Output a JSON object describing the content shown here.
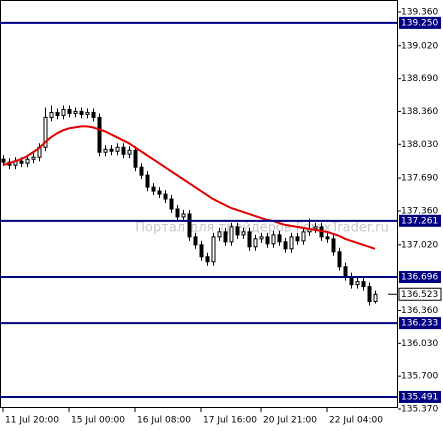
{
  "chart_data": {
    "type": "candlestick",
    "watermark": "Портал для трейдеров ForexTrader.ru",
    "categories": [
      "11 Jul 20:00",
      null,
      null,
      null,
      null,
      null,
      null,
      null,
      null,
      null,
      null,
      "15 Jul 00:00",
      null,
      null,
      null,
      null,
      null,
      null,
      null,
      null,
      null,
      null,
      "16 Jul 08:00",
      null,
      null,
      null,
      null,
      null,
      null,
      null,
      null,
      null,
      null,
      "17 Jul 16:00",
      null,
      null,
      null,
      null,
      null,
      null,
      null,
      null,
      null,
      "20 Jul 21:00",
      null,
      null,
      null,
      null,
      null,
      null,
      null,
      null,
      null,
      null,
      "22 Jul 04:00",
      null,
      null,
      null,
      null,
      null,
      null,
      null,
      null
    ],
    "open": [
      137.88,
      137.85,
      137.82,
      137.86,
      137.84,
      137.88,
      137.9,
      138.0,
      138.3,
      138.35,
      138.32,
      138.38,
      138.34,
      138.36,
      138.33,
      138.35,
      138.3,
      137.95,
      137.98,
      137.96,
      138.0,
      137.93,
      137.97,
      137.8,
      137.72,
      137.6,
      137.56,
      137.53,
      137.48,
      137.38,
      137.3,
      137.33,
      137.1,
      137.02,
      136.9,
      136.85,
      137.1,
      137.15,
      137.05,
      137.2,
      137.12,
      137.15,
      137.0,
      137.08,
      137.1,
      137.03,
      137.12,
      137.05,
      136.98,
      137.1,
      137.06,
      137.15,
      137.18,
      137.2,
      137.1,
      137.08,
      136.95,
      136.8,
      136.7,
      136.62,
      136.65,
      136.6,
      136.45
    ],
    "high": [
      137.92,
      137.89,
      137.9,
      137.9,
      137.92,
      137.94,
      138.04,
      138.4,
      138.42,
      138.39,
      138.42,
      138.42,
      138.4,
      138.4,
      138.39,
      138.39,
      138.34,
      138.02,
      138.02,
      138.04,
      138.04,
      138.01,
      138.01,
      137.84,
      137.76,
      137.64,
      137.6,
      137.57,
      137.52,
      137.42,
      137.37,
      137.37,
      137.14,
      137.06,
      136.94,
      137.14,
      137.19,
      137.19,
      137.24,
      137.24,
      137.19,
      137.19,
      137.12,
      137.14,
      137.14,
      137.16,
      137.16,
      137.09,
      137.14,
      137.14,
      137.19,
      137.28,
      137.24,
      137.24,
      137.14,
      137.12,
      136.99,
      136.84,
      136.74,
      136.69,
      136.69,
      136.64,
      136.56
    ],
    "low": [
      137.81,
      137.78,
      137.78,
      137.8,
      137.8,
      137.84,
      137.86,
      137.96,
      138.26,
      138.28,
      138.28,
      138.3,
      138.3,
      138.29,
      138.29,
      138.26,
      137.91,
      137.91,
      137.92,
      137.92,
      137.89,
      137.89,
      137.76,
      137.68,
      137.56,
      137.52,
      137.49,
      137.44,
      137.34,
      137.26,
      137.26,
      137.06,
      136.98,
      136.86,
      136.81,
      136.81,
      137.06,
      137.01,
      137.01,
      137.08,
      137.08,
      136.96,
      136.96,
      137.04,
      136.99,
      136.99,
      137.01,
      136.94,
      136.94,
      137.02,
      137.02,
      137.11,
      137.14,
      137.06,
      137.04,
      136.91,
      136.76,
      136.66,
      136.58,
      136.58,
      136.56,
      136.41,
      136.43
    ],
    "close": [
      137.85,
      137.82,
      137.86,
      137.84,
      137.88,
      137.9,
      138.0,
      138.3,
      138.35,
      138.32,
      138.38,
      138.34,
      138.36,
      138.33,
      138.35,
      138.3,
      137.95,
      137.98,
      137.96,
      138.0,
      137.93,
      137.97,
      137.8,
      137.72,
      137.6,
      137.56,
      137.53,
      137.48,
      137.38,
      137.3,
      137.33,
      137.1,
      137.02,
      136.9,
      136.85,
      137.1,
      137.15,
      137.05,
      137.2,
      137.12,
      137.15,
      137.0,
      137.08,
      137.1,
      137.03,
      137.12,
      137.05,
      136.98,
      137.1,
      137.06,
      137.15,
      137.18,
      137.2,
      137.1,
      137.08,
      136.95,
      136.8,
      136.7,
      136.62,
      136.65,
      136.6,
      136.45,
      136.523
    ],
    "ma": {
      "color": "#e00000",
      "values": [
        137.82,
        137.84,
        137.86,
        137.88,
        137.91,
        137.95,
        137.99,
        138.05,
        138.1,
        138.14,
        138.17,
        138.19,
        138.2,
        138.21,
        138.21,
        138.2,
        138.18,
        138.16,
        138.13,
        138.1,
        138.07,
        138.04,
        138.0,
        137.96,
        137.92,
        137.88,
        137.84,
        137.8,
        137.76,
        137.72,
        137.68,
        137.64,
        137.6,
        137.56,
        137.52,
        137.48,
        137.45,
        137.42,
        137.39,
        137.37,
        137.35,
        137.33,
        137.31,
        137.29,
        137.27,
        137.26,
        137.24,
        137.22,
        137.21,
        137.2,
        137.19,
        137.18,
        137.17,
        137.16,
        137.15,
        137.13,
        137.11,
        137.08,
        137.06,
        137.04,
        137.02,
        137.0,
        136.98
      ]
    },
    "levels": [
      {
        "value": 139.25,
        "label": "139.250"
      },
      {
        "value": 137.261,
        "label": "137.261"
      },
      {
        "value": 136.696,
        "label": "136.696"
      },
      {
        "value": 136.233,
        "label": "136.233"
      },
      {
        "value": 135.491,
        "label": "135.491"
      }
    ],
    "level_color": "#000080",
    "bid": {
      "value": 136.523,
      "label": "136.523"
    },
    "ylim": [
      135.38,
      139.48
    ],
    "yticks": [
      {
        "value": 139.36,
        "label": "139.360"
      },
      {
        "value": 139.02,
        "label": "139.020"
      },
      {
        "value": 138.69,
        "label": "138.690"
      },
      {
        "value": 138.36,
        "label": "138.360"
      },
      {
        "value": 138.03,
        "label": "138.030"
      },
      {
        "value": 137.69,
        "label": "137.690"
      },
      {
        "value": 137.36,
        "label": "137.360"
      },
      {
        "value": 137.02,
        "label": "137.020"
      },
      {
        "value": 136.36,
        "label": "136.360"
      },
      {
        "value": 136.03,
        "label": "136.030"
      },
      {
        "value": 135.7,
        "label": "135.700"
      },
      {
        "value": 135.37,
        "label": "135.370"
      }
    ]
  }
}
